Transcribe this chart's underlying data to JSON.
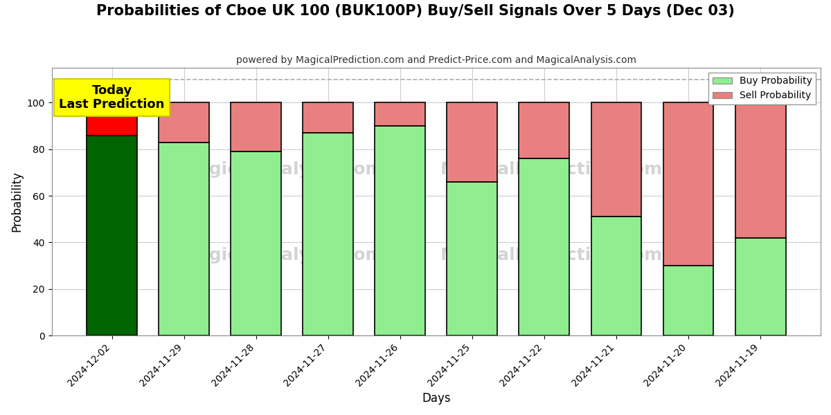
{
  "title": "Probabilities of Cboe UK 100 (BUK100P) Buy/Sell Signals Over 5 Days (Dec 03)",
  "subtitle": "powered by MagicalPrediction.com and Predict-Price.com and MagicalAnalysis.com",
  "xlabel": "Days",
  "ylabel": "Probability",
  "dates": [
    "2024-12-02",
    "2024-11-29",
    "2024-11-28",
    "2024-11-27",
    "2024-11-26",
    "2024-11-25",
    "2024-11-22",
    "2024-11-21",
    "2024-11-20",
    "2024-11-19"
  ],
  "buy_values": [
    86,
    83,
    79,
    87,
    90,
    66,
    76,
    51,
    30,
    42
  ],
  "sell_values": [
    14,
    17,
    21,
    13,
    10,
    34,
    24,
    49,
    70,
    58
  ],
  "today_buy_color": "#006400",
  "today_sell_color": "#FF0000",
  "buy_color": "#90EE90",
  "sell_color": "#E88080",
  "today_annotation_text": "Today\nLast Prediction",
  "today_annotation_bg": "#FFFF00",
  "dashed_line_y": 110,
  "ylim": [
    0,
    115
  ],
  "yticks": [
    0,
    20,
    40,
    60,
    80,
    100
  ],
  "background_color": "#ffffff",
  "plot_bg_color": "#ffffff",
  "grid_color": "#cccccc",
  "wm1_text": "MagicalAnalysis.com",
  "wm2_text": "MagicalPrediction.com",
  "bar_edgecolor": "#000000",
  "bar_linewidth": 1.2,
  "legend_label_buy": "Buy Probability",
  "legend_label_sell": "Sell Probability"
}
